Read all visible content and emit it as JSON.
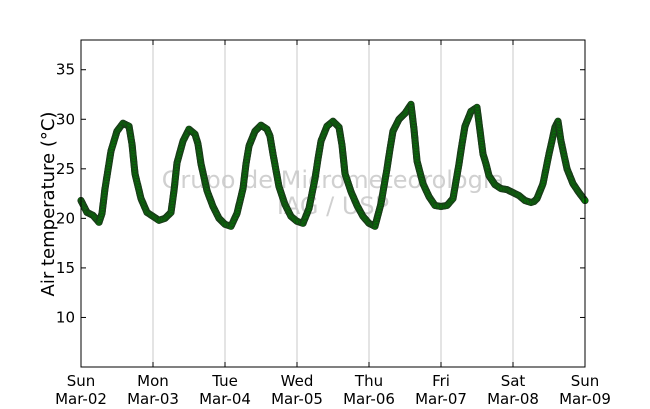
{
  "chart_data": {
    "type": "scatter",
    "ylabel": "Air temperature (°C)",
    "ylim": [
      5,
      38
    ],
    "yticks": [
      10,
      15,
      20,
      25,
      30,
      35
    ],
    "xlim": [
      "2014-03-02 00:00",
      "2014-03-09 00:00"
    ],
    "xticks": [
      {
        "day": "Sun",
        "date": "Mar-02"
      },
      {
        "day": "Mon",
        "date": "Mar-03"
      },
      {
        "day": "Tue",
        "date": "Mar-04"
      },
      {
        "day": "Wed",
        "date": "Mar-05"
      },
      {
        "day": "Thu",
        "date": "Mar-06"
      },
      {
        "day": "Fri",
        "date": "Mar-07"
      },
      {
        "day": "Sat",
        "date": "Mar-08"
      },
      {
        "day": "Sun",
        "date": "Mar-09"
      }
    ],
    "vertical_grid": true,
    "watermark": [
      "Grupo de Micrometeorologia",
      "IAG / USP"
    ],
    "series": [
      {
        "color": "#008000",
        "edge_color": "#1a3a1a",
        "x": [
          "2014-03-02 00:00",
          "2014-03-02 02:00",
          "2014-03-02 04:00",
          "2014-03-02 06:00",
          "2014-03-02 07:00",
          "2014-03-02 08:00",
          "2014-03-02 10:00",
          "2014-03-02 12:00",
          "2014-03-02 14:00",
          "2014-03-02 16:00",
          "2014-03-02 17:00",
          "2014-03-02 18:00",
          "2014-03-02 20:00",
          "2014-03-02 22:00",
          "2014-03-03 00:00",
          "2014-03-03 02:00",
          "2014-03-03 04:00",
          "2014-03-03 06:00",
          "2014-03-03 07:00",
          "2014-03-03 08:00",
          "2014-03-03 10:00",
          "2014-03-03 12:00",
          "2014-03-03 14:00",
          "2014-03-03 15:00",
          "2014-03-03 16:00",
          "2014-03-03 18:00",
          "2014-03-03 20:00",
          "2014-03-03 22:00",
          "2014-03-04 00:00",
          "2014-03-04 02:00",
          "2014-03-04 04:00",
          "2014-03-04 06:00",
          "2014-03-04 07:00",
          "2014-03-04 08:00",
          "2014-03-04 10:00",
          "2014-03-04 12:00",
          "2014-03-04 14:00",
          "2014-03-04 15:00",
          "2014-03-04 16:00",
          "2014-03-04 18:00",
          "2014-03-04 20:00",
          "2014-03-04 22:00",
          "2014-03-05 00:00",
          "2014-03-05 02:00",
          "2014-03-05 04:00",
          "2014-03-05 06:00",
          "2014-03-05 07:00",
          "2014-03-05 08:00",
          "2014-03-05 10:00",
          "2014-03-05 12:00",
          "2014-03-05 14:00",
          "2014-03-05 15:00",
          "2014-03-05 16:00",
          "2014-03-05 18:00",
          "2014-03-05 20:00",
          "2014-03-05 22:00",
          "2014-03-06 00:00",
          "2014-03-06 02:00",
          "2014-03-06 04:00",
          "2014-03-06 06:00",
          "2014-03-06 07:00",
          "2014-03-06 08:00",
          "2014-03-06 10:00",
          "2014-03-06 12:00",
          "2014-03-06 14:00",
          "2014-03-06 15:00",
          "2014-03-06 16:00",
          "2014-03-06 18:00",
          "2014-03-06 20:00",
          "2014-03-06 22:00",
          "2014-03-07 00:00",
          "2014-03-07 02:00",
          "2014-03-07 04:00",
          "2014-03-07 06:00",
          "2014-03-07 07:00",
          "2014-03-07 08:00",
          "2014-03-07 10:00",
          "2014-03-07 12:00",
          "2014-03-07 14:00",
          "2014-03-07 15:00",
          "2014-03-07 16:00",
          "2014-03-07 18:00",
          "2014-03-07 20:00",
          "2014-03-07 22:00",
          "2014-03-08 00:00",
          "2014-03-08 02:00",
          "2014-03-08 04:00",
          "2014-03-08 06:00",
          "2014-03-08 07:00",
          "2014-03-08 08:00",
          "2014-03-08 10:00",
          "2014-03-08 12:00",
          "2014-03-08 14:00",
          "2014-03-08 15:00",
          "2014-03-08 16:00",
          "2014-03-08 18:00",
          "2014-03-08 20:00",
          "2014-03-08 22:00",
          "2014-03-09 00:00"
        ],
        "y": [
          21.8,
          20.6,
          20.3,
          19.6,
          20.5,
          23.0,
          26.8,
          28.8,
          29.6,
          29.3,
          27.5,
          24.5,
          22.0,
          20.6,
          20.2,
          19.8,
          20.0,
          20.6,
          22.8,
          25.6,
          27.8,
          29.0,
          28.5,
          27.5,
          25.5,
          22.8,
          21.2,
          20.0,
          19.4,
          19.2,
          20.5,
          23.0,
          25.5,
          27.3,
          28.8,
          29.4,
          29.0,
          28.3,
          26.5,
          23.2,
          21.4,
          20.2,
          19.7,
          19.5,
          21.0,
          24.0,
          26.0,
          27.8,
          29.3,
          29.8,
          29.2,
          27.4,
          24.5,
          22.7,
          21.3,
          20.2,
          19.5,
          19.2,
          21.5,
          25.0,
          27.0,
          28.8,
          30.0,
          30.6,
          31.5,
          29.0,
          25.8,
          23.5,
          22.2,
          21.3,
          21.2,
          21.3,
          22.0,
          25.5,
          27.5,
          29.3,
          30.8,
          31.2,
          26.5,
          25.5,
          24.3,
          23.4,
          23.0,
          22.9,
          22.6,
          22.3,
          21.8,
          21.6,
          21.7,
          22.0,
          23.5,
          26.5,
          29.2,
          29.8,
          27.8,
          25.0,
          23.5,
          22.6,
          21.8
        ]
      }
    ]
  }
}
